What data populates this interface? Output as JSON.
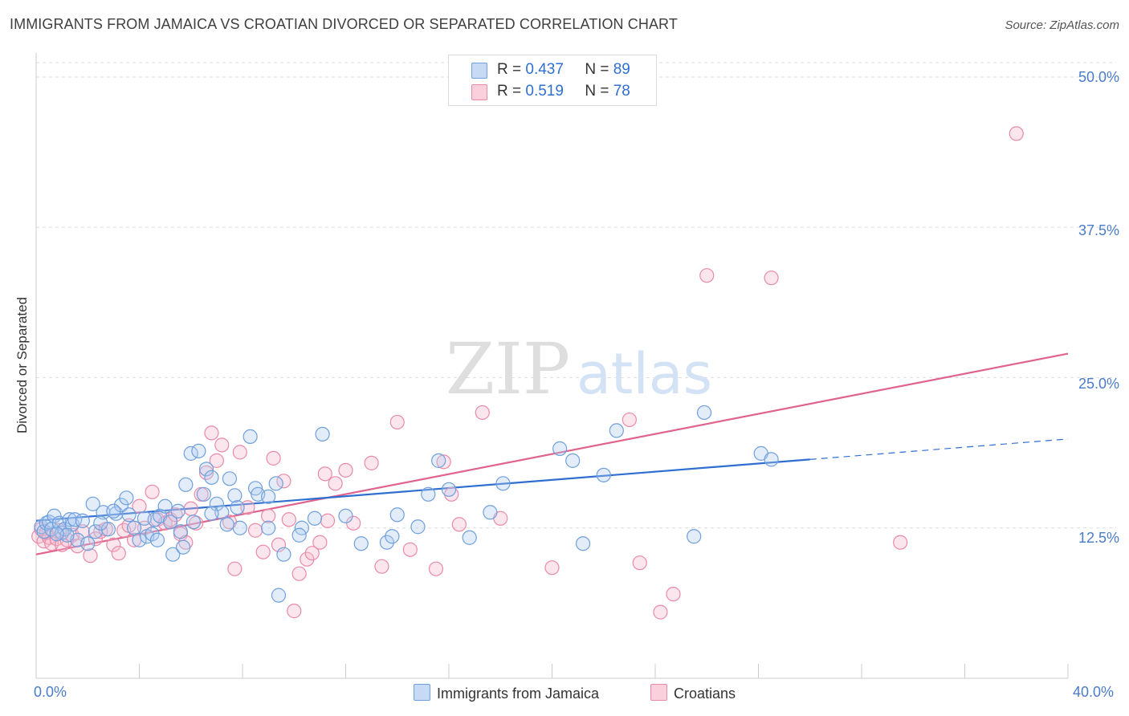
{
  "title": "IMMIGRANTS FROM JAMAICA VS CROATIAN DIVORCED OR SEPARATED CORRELATION CHART",
  "source": "Source: ZipAtlas.com",
  "watermark": {
    "zip": "ZIP",
    "atlas": "atlas"
  },
  "colors": {
    "blue_fill": "#aecbf0",
    "blue_stroke": "#6f9fdc",
    "blue_line": "#2f6fd1",
    "pink_fill": "#f5b8cb",
    "pink_stroke": "#e98aa8",
    "pink_line": "#e0638e",
    "grid": "#dddddd",
    "tick_label": "#4a7cc9"
  },
  "legend_top": {
    "rows": [
      {
        "r_label": "R =",
        "r_value": "0.437",
        "n_label": "N =",
        "n_value": "89"
      },
      {
        "r_label": "R =",
        "r_value": "0.519",
        "n_label": "N =",
        "n_value": "78"
      }
    ]
  },
  "legend_bottom": {
    "series1": "Immigrants from Jamaica",
    "series2": "Croatians"
  },
  "chart_data": {
    "type": "scatter",
    "title": "IMMIGRANTS FROM JAMAICA VS CROATIAN DIVORCED OR SEPARATED CORRELATION CHART",
    "xlabel": "",
    "ylabel": "Divorced or Separated",
    "xlim": [
      0,
      40
    ],
    "ylim": [
      0,
      50
    ],
    "x_tick_labels": [
      "0.0%",
      "40.0%"
    ],
    "y_tick_labels": [
      "12.5%",
      "25.0%",
      "37.5%",
      "50.0%"
    ],
    "y_ticks": [
      12.5,
      25.0,
      37.5,
      50.0
    ],
    "grid": true,
    "legend_position": "top-center",
    "series": [
      {
        "name": "Immigrants from Jamaica",
        "r": 0.437,
        "n": 89,
        "trend": {
          "x0": 0,
          "y0": 13.1,
          "x1": 30.0,
          "y1": 18.2,
          "dash_to_x": 40,
          "dash_to_y": 19.9
        },
        "points": [
          [
            0.2,
            12.6
          ],
          [
            0.3,
            12.2
          ],
          [
            0.4,
            12.9
          ],
          [
            0.5,
            13.0
          ],
          [
            0.6,
            12.4
          ],
          [
            0.7,
            13.5
          ],
          [
            0.9,
            12.9
          ],
          [
            1.0,
            12.1
          ],
          [
            1.1,
            12.4
          ],
          [
            1.3,
            13.2
          ],
          [
            1.4,
            12.8
          ],
          [
            1.5,
            13.2
          ],
          [
            1.6,
            11.5
          ],
          [
            1.8,
            13.1
          ],
          [
            2.0,
            11.2
          ],
          [
            2.2,
            14.5
          ],
          [
            2.3,
            12.2
          ],
          [
            2.6,
            13.8
          ],
          [
            2.8,
            12.4
          ],
          [
            3.1,
            13.7
          ],
          [
            3.3,
            14.4
          ],
          [
            3.5,
            15.0
          ],
          [
            3.6,
            13.6
          ],
          [
            3.8,
            12.5
          ],
          [
            4.0,
            11.5
          ],
          [
            4.2,
            13.3
          ],
          [
            4.3,
            11.8
          ],
          [
            4.5,
            12.0
          ],
          [
            4.6,
            13.2
          ],
          [
            4.8,
            13.5
          ],
          [
            5.0,
            14.3
          ],
          [
            5.2,
            13.0
          ],
          [
            5.3,
            10.3
          ],
          [
            5.5,
            13.9
          ],
          [
            5.6,
            12.2
          ],
          [
            5.8,
            16.1
          ],
          [
            6.0,
            18.7
          ],
          [
            6.1,
            13.0
          ],
          [
            6.3,
            18.9
          ],
          [
            6.5,
            15.3
          ],
          [
            6.6,
            17.4
          ],
          [
            6.8,
            16.7
          ],
          [
            7.0,
            14.5
          ],
          [
            7.2,
            13.8
          ],
          [
            7.5,
            16.6
          ],
          [
            7.7,
            15.2
          ],
          [
            7.8,
            14.2
          ],
          [
            7.9,
            12.5
          ],
          [
            8.3,
            20.1
          ],
          [
            8.5,
            15.8
          ],
          [
            8.6,
            15.3
          ],
          [
            9.0,
            15.1
          ],
          [
            9.3,
            16.2
          ],
          [
            9.4,
            6.9
          ],
          [
            9.6,
            10.3
          ],
          [
            10.3,
            12.5
          ],
          [
            10.8,
            13.3
          ],
          [
            11.1,
            20.3
          ],
          [
            12.0,
            13.5
          ],
          [
            12.6,
            11.2
          ],
          [
            13.6,
            11.3
          ],
          [
            13.8,
            11.8
          ],
          [
            14.0,
            13.6
          ],
          [
            14.8,
            12.6
          ],
          [
            15.2,
            15.3
          ],
          [
            15.6,
            18.1
          ],
          [
            16.0,
            15.7
          ],
          [
            16.8,
            11.7
          ],
          [
            17.6,
            13.8
          ],
          [
            18.1,
            16.2
          ],
          [
            20.3,
            19.1
          ],
          [
            20.8,
            18.1
          ],
          [
            21.2,
            11.2
          ],
          [
            22.0,
            16.9
          ],
          [
            22.5,
            20.6
          ],
          [
            25.5,
            11.8
          ],
          [
            25.9,
            22.1
          ],
          [
            28.1,
            18.7
          ],
          [
            28.5,
            18.2
          ],
          [
            9.0,
            12.5
          ],
          [
            4.7,
            11.5
          ],
          [
            1.2,
            11.9
          ],
          [
            3.0,
            13.9
          ],
          [
            7.4,
            12.8
          ],
          [
            0.8,
            12.0
          ],
          [
            2.5,
            12.9
          ],
          [
            6.8,
            13.7
          ],
          [
            10.2,
            11.9
          ],
          [
            5.7,
            10.9
          ]
        ]
      },
      {
        "name": "Croatians",
        "r": 0.519,
        "n": 78,
        "trend": {
          "x0": 0,
          "y0": 10.3,
          "x1": 40,
          "y1": 27.0
        },
        "points": [
          [
            0.1,
            11.8
          ],
          [
            0.2,
            12.4
          ],
          [
            0.3,
            11.4
          ],
          [
            0.4,
            12.1
          ],
          [
            0.5,
            11.7
          ],
          [
            0.6,
            11.2
          ],
          [
            0.8,
            11.6
          ],
          [
            0.9,
            12.3
          ],
          [
            1.0,
            11.1
          ],
          [
            1.2,
            11.5
          ],
          [
            1.4,
            11.9
          ],
          [
            1.6,
            11.0
          ],
          [
            1.8,
            12.2
          ],
          [
            2.1,
            10.2
          ],
          [
            2.3,
            11.6
          ],
          [
            2.5,
            12.2
          ],
          [
            2.7,
            12.4
          ],
          [
            3.0,
            11.1
          ],
          [
            3.2,
            10.4
          ],
          [
            3.4,
            12.3
          ],
          [
            3.6,
            12.7
          ],
          [
            3.8,
            11.5
          ],
          [
            4.0,
            14.3
          ],
          [
            4.2,
            12.5
          ],
          [
            4.5,
            15.5
          ],
          [
            4.7,
            13.2
          ],
          [
            5.0,
            12.9
          ],
          [
            5.2,
            13.2
          ],
          [
            5.4,
            13.6
          ],
          [
            5.6,
            12.0
          ],
          [
            5.8,
            11.3
          ],
          [
            6.0,
            14.1
          ],
          [
            6.2,
            12.9
          ],
          [
            6.4,
            15.3
          ],
          [
            6.6,
            17.1
          ],
          [
            6.8,
            20.4
          ],
          [
            7.0,
            18.1
          ],
          [
            7.2,
            19.4
          ],
          [
            7.5,
            13.0
          ],
          [
            7.7,
            9.1
          ],
          [
            7.9,
            18.8
          ],
          [
            8.2,
            14.2
          ],
          [
            8.5,
            12.3
          ],
          [
            8.8,
            10.5
          ],
          [
            9.0,
            13.5
          ],
          [
            9.2,
            18.3
          ],
          [
            9.4,
            11.1
          ],
          [
            9.6,
            16.4
          ],
          [
            9.8,
            13.2
          ],
          [
            10.0,
            5.6
          ],
          [
            10.2,
            8.7
          ],
          [
            10.5,
            9.9
          ],
          [
            10.7,
            10.4
          ],
          [
            11.0,
            11.3
          ],
          [
            11.3,
            13.1
          ],
          [
            11.6,
            16.2
          ],
          [
            12.0,
            17.3
          ],
          [
            12.3,
            12.9
          ],
          [
            13.0,
            17.9
          ],
          [
            13.4,
            9.3
          ],
          [
            14.0,
            21.3
          ],
          [
            14.5,
            10.7
          ],
          [
            15.5,
            9.1
          ],
          [
            15.8,
            18.0
          ],
          [
            16.1,
            15.3
          ],
          [
            16.4,
            12.8
          ],
          [
            17.3,
            22.1
          ],
          [
            18.0,
            13.3
          ],
          [
            20.0,
            9.2
          ],
          [
            23.0,
            21.5
          ],
          [
            23.4,
            9.6
          ],
          [
            24.2,
            5.5
          ],
          [
            24.7,
            7.0
          ],
          [
            26.0,
            33.5
          ],
          [
            28.5,
            33.3
          ],
          [
            33.5,
            11.3
          ],
          [
            38.0,
            45.3
          ],
          [
            11.2,
            17.0
          ]
        ]
      }
    ]
  }
}
